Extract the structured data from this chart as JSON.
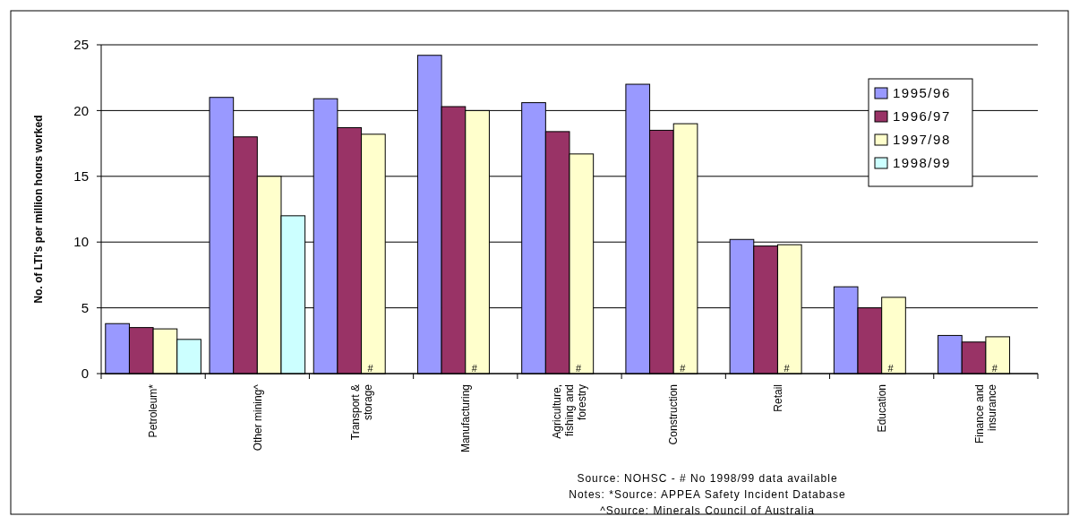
{
  "chart_data": {
    "type": "bar",
    "ylabel": "No. of LTI's per million hours worked",
    "categories": [
      "Petroleum*",
      "Other mining^",
      "Transport & storage",
      "Manufacturing",
      "Agriculture, fishing and forestry",
      "Construction",
      "Retail",
      "Education",
      "Finance and insurance"
    ],
    "series": [
      {
        "name": "1995/96",
        "color": "#9999ff",
        "values": [
          3.8,
          21,
          20.9,
          24.2,
          20.6,
          22,
          10.2,
          6.6,
          2.9
        ]
      },
      {
        "name": "1996/97",
        "color": "#993366",
        "values": [
          3.5,
          18,
          18.7,
          20.3,
          18.4,
          18.5,
          9.7,
          5,
          2.4
        ]
      },
      {
        "name": "1997/98",
        "color": "#ffffcc",
        "values": [
          3.4,
          15,
          18.2,
          20,
          16.7,
          19,
          9.8,
          5.8,
          2.8
        ]
      },
      {
        "name": "1998/99",
        "color": "#ccffff",
        "values": [
          2.6,
          12,
          null,
          null,
          null,
          null,
          null,
          null,
          null
        ]
      }
    ],
    "ylim": [
      0,
      25
    ],
    "yticks": [
      0,
      5,
      10,
      15,
      20,
      25
    ],
    "grid": "y",
    "legend": "top right",
    "annotations": [
      {
        "text": "#",
        "x": "Transport & storage",
        "y": 0
      },
      {
        "text": "#",
        "x": "Manufacturing",
        "y": 0
      },
      {
        "text": "#",
        "x": "Agriculture, fishing and forestry",
        "y": 0
      },
      {
        "text": "#",
        "x": "Construction",
        "y": 0
      },
      {
        "text": "#",
        "x": "Retail",
        "y": 0
      },
      {
        "text": "#",
        "x": "Education",
        "y": 0
      },
      {
        "text": "#",
        "x": "Finance and insurance",
        "y": 0
      },
      "Source: NOHSC - # No 1998/99 data available",
      "Notes: *Source: APPEA Safety Incident Database",
      "^Source: Minerals Council of Australia"
    ]
  }
}
